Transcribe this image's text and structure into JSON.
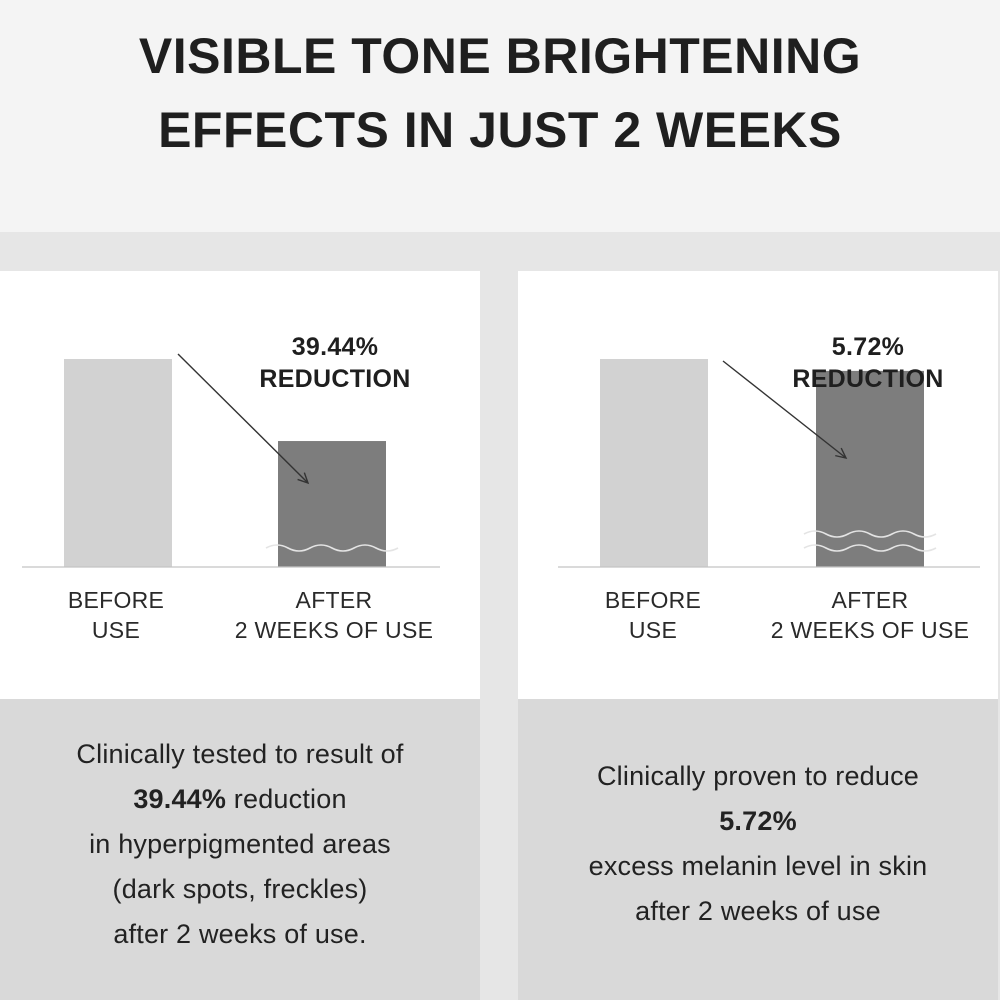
{
  "title": {
    "line1": "VISIBLE TONE BRIGHTENING",
    "line2": "EFFECTS IN JUST 2 WEEKS"
  },
  "colors": {
    "before_bar": "#d2d2d2",
    "after_bar": "#7d7d7d",
    "panel_bg": "#ffffff",
    "caption_bg": "#d9d9d9",
    "band_bg": "#e6e6e6"
  },
  "chart_data": [
    {
      "type": "bar",
      "categories": [
        "BEFORE USE",
        "AFTER 2 WEEKS OF USE"
      ],
      "values": [
        100,
        60.56
      ],
      "ylim": [
        0,
        100
      ],
      "grid": false,
      "category_labels": [
        [
          "BEFORE",
          "USE"
        ],
        [
          "AFTER",
          "2 WEEKS OF USE"
        ]
      ],
      "annotation": {
        "value": "39.44%",
        "label": "REDUCTION"
      },
      "caption": {
        "line1": "Clinically tested to result of",
        "line2_bold": "39.44%",
        "line2_rest": " reduction",
        "line3": "in hyperpigmented areas",
        "line4": "(dark spots, freckles)",
        "line5": "after 2 weeks of use."
      }
    },
    {
      "type": "bar",
      "categories": [
        "BEFORE USE",
        "AFTER 2 WEEKS OF USE"
      ],
      "values": [
        100,
        94.28
      ],
      "ylim": [
        0,
        100
      ],
      "grid": false,
      "category_labels": [
        [
          "BEFORE",
          "USE"
        ],
        [
          "AFTER",
          "2 WEEKS OF USE"
        ]
      ],
      "annotation": {
        "value": "5.72%",
        "label": "REDUCTION"
      },
      "caption": {
        "line1": "Clinically proven to reduce",
        "line2_bold": "5.72%",
        "line3": "excess melanin level in skin",
        "line4": "after 2 weeks of use"
      }
    }
  ]
}
